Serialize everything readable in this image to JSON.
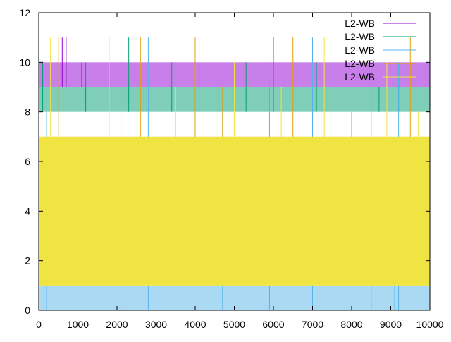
{
  "chart_data": {
    "type": "line",
    "title": "",
    "xlabel": "",
    "ylabel": "",
    "xlim": [
      0,
      10000
    ],
    "ylim": [
      0,
      12
    ],
    "x_ticks": [
      0,
      1000,
      2000,
      3000,
      4000,
      5000,
      6000,
      7000,
      8000,
      9000,
      10000
    ],
    "y_ticks": [
      0,
      2,
      4,
      6,
      8,
      10,
      12
    ],
    "grid": false,
    "legend_position": "top-right",
    "series": [
      {
        "name": "L2-WB",
        "color": "#9400d3",
        "baseline": 10,
        "spikes": [
          [
            600,
            11
          ],
          [
            700,
            11
          ],
          [
            1000,
            9
          ],
          [
            1100,
            10
          ]
        ]
      },
      {
        "name": "L2-WB",
        "color": "#009e73",
        "baseline": 9,
        "spikes": [
          [
            100,
            10
          ],
          [
            1200,
            10
          ],
          [
            2300,
            11
          ],
          [
            3400,
            10
          ],
          [
            4100,
            11
          ],
          [
            5300,
            10
          ],
          [
            6000,
            11
          ],
          [
            7100,
            10
          ],
          [
            8700,
            9
          ],
          [
            9200,
            10
          ]
        ]
      },
      {
        "name": "L2-WB",
        "color": "#56b4e9",
        "baseline": 1,
        "spikes": [
          [
            200,
            8
          ],
          [
            2100,
            11
          ],
          [
            2800,
            11
          ],
          [
            4700,
            9
          ],
          [
            5900,
            10
          ],
          [
            7000,
            11
          ],
          [
            8500,
            10
          ],
          [
            9100,
            3
          ],
          [
            9200,
            10
          ]
        ]
      },
      {
        "name": "L2-WB",
        "color": "#e69f00",
        "baseline": 7,
        "spikes": [
          [
            100,
            2
          ],
          [
            500,
            11
          ],
          [
            2600,
            11
          ],
          [
            4000,
            11
          ],
          [
            4700,
            9
          ],
          [
            6500,
            11
          ],
          [
            8000,
            8
          ],
          [
            9500,
            11
          ]
        ]
      },
      {
        "name": "L2-WB",
        "color": "#f0e442",
        "baseline": 1,
        "upper": 7,
        "spikes": [
          [
            300,
            11
          ],
          [
            1800,
            11
          ],
          [
            3500,
            9
          ],
          [
            5000,
            10
          ],
          [
            6200,
            9
          ],
          [
            7300,
            11
          ],
          [
            8900,
            10
          ],
          [
            9700,
            8
          ]
        ]
      }
    ]
  }
}
